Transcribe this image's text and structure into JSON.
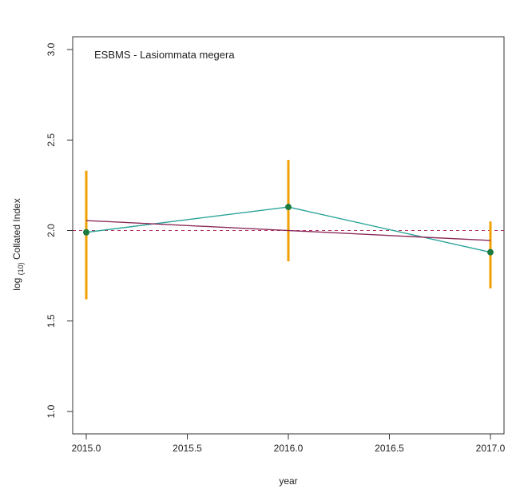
{
  "chart_data": {
    "type": "line",
    "title": "ESBMS - Lasiommata megera",
    "xlabel": "year",
    "ylabel": "log (10) Collated Index",
    "ylabel_parts": {
      "pre": "log ",
      "sub": "(10)",
      "post": " Collated Index"
    },
    "xlim": [
      2015.0,
      2017.0
    ],
    "ylim": [
      1.0,
      3.0
    ],
    "x_ticks": [
      "2015.0",
      "2015.5",
      "2016.0",
      "2016.5",
      "2017.0"
    ],
    "y_ticks": [
      "1.0",
      "1.5",
      "2.0",
      "2.5",
      "3.0"
    ],
    "x_tick_values": [
      2015.0,
      2015.5,
      2016.0,
      2016.5,
      2017.0
    ],
    "y_tick_values": [
      1.0,
      1.5,
      2.0,
      2.5,
      3.0
    ],
    "reference_line": {
      "y": 2.0,
      "style": "dashed",
      "color": "#b03060"
    },
    "error_bars": {
      "color": "#f0a000",
      "x": [
        2015.0,
        2016.0,
        2017.0
      ],
      "lower": [
        1.62,
        1.83,
        1.68
      ],
      "upper": [
        2.33,
        2.39,
        2.05
      ]
    },
    "series": [
      {
        "x": [
          2015.0,
          2016.0,
          2017.0
        ],
        "values": [
          1.99,
          2.13,
          1.88
        ],
        "color": "#2aa39a",
        "marker_color": "#1a7a40"
      },
      {
        "x": [
          2015.0,
          2017.0
        ],
        "values": [
          2.055,
          1.945
        ],
        "color": "#8b2a5a"
      }
    ],
    "grid": false,
    "legend": "none"
  }
}
